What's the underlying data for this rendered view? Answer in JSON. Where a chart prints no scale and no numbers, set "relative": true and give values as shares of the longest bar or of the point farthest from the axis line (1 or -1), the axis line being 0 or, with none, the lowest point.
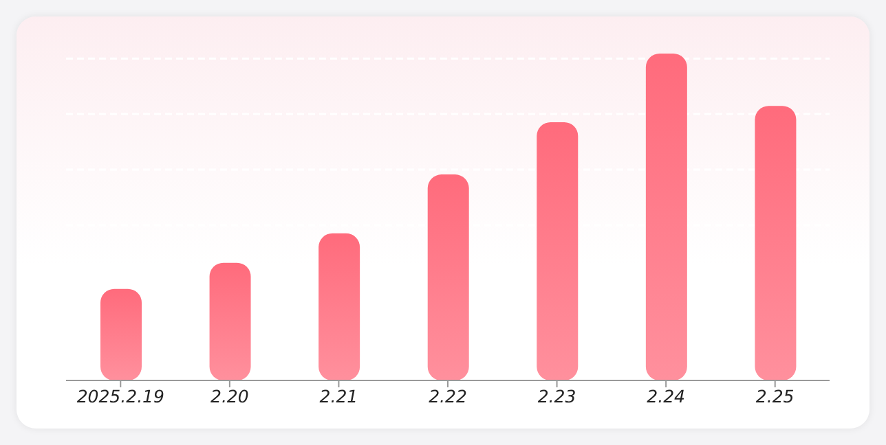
{
  "chart_data": {
    "type": "bar",
    "relative": true,
    "categories": [
      "2025.2.19",
      "2.20",
      "2.21",
      "2.22",
      "2.23",
      "2.24",
      "2.25"
    ],
    "series": [
      {
        "color": "#ff6b7c",
        "values": [
          0.28,
          0.36,
          0.45,
          0.63,
          0.79,
          1,
          0.84
        ]
      }
    ],
    "grid": "y"
  }
}
